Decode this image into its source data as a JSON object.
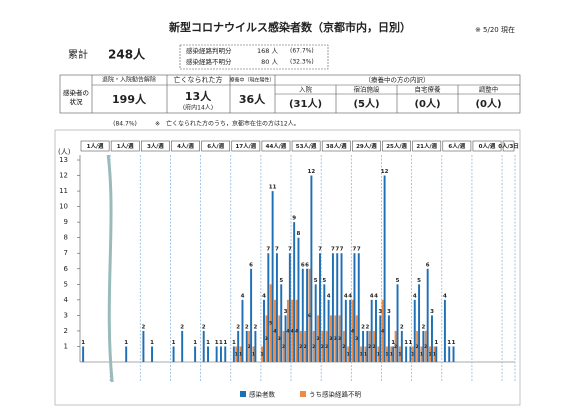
{
  "header": {
    "title": "新型コロナウイルス感染者数（京都市内，日別）",
    "date": "※ 5/20 現在"
  },
  "total": {
    "label": "累計",
    "value": "248人"
  },
  "route": {
    "rows": [
      [
        "感染経路判明分",
        "168 人",
        "(67.7%)"
      ],
      [
        "感染経路不明分",
        "80 人",
        "(32.3%)"
      ]
    ]
  },
  "status_table": {
    "row_header": "感染者の状況",
    "columns": [
      {
        "head": "退院・入院勧告解除",
        "value": "199人",
        "note": "(84.7%)"
      },
      {
        "head": "亡くなられた方",
        "value": "13人",
        "sub": "(府内14人)"
      },
      {
        "head": "療養中（現在陽性）",
        "value": "36人"
      }
    ],
    "group_head": "（療養中の方の内訳）",
    "group": [
      {
        "head": "入院",
        "value": "(31人)"
      },
      {
        "head": "宿泊施設",
        "value": "(5人)"
      },
      {
        "head": "自宅療養",
        "value": "(0人)"
      },
      {
        "head": "調整中",
        "value": "(0人)"
      }
    ],
    "footnote": "※　亡くなられた方のうち，京都市在住の方は12人。"
  },
  "chart_data": {
    "type": "bar",
    "y_label": "(人)",
    "weeks": [
      "1人/週",
      "1人/週",
      "3人/週",
      "4人/週",
      "6人/週",
      "17人/週",
      "44人/週",
      "53人/週",
      "38人/週",
      "29人/週",
      "25人/週",
      "21人/週",
      "6人/週",
      "0人/週",
      "0人/3日"
    ],
    "ylim": [
      0,
      13
    ],
    "yticks": [
      1,
      2,
      3,
      4,
      5,
      6,
      7,
      8,
      9,
      10,
      11,
      12,
      13
    ],
    "series": [
      {
        "name": "うち感染経路不明",
        "color": "#ed8b45",
        "values": [
          0,
          0,
          0,
          0,
          0,
          0,
          0,
          0,
          0,
          0,
          0,
          0,
          0,
          0,
          0,
          0,
          0,
          0,
          0,
          0,
          0,
          0,
          0,
          0,
          0,
          0,
          0,
          0,
          0,
          0,
          0,
          0,
          0,
          0,
          0,
          0,
          1,
          1,
          0,
          2,
          1,
          0,
          1,
          3,
          5,
          4,
          3,
          2,
          4,
          4,
          4,
          2,
          2,
          6,
          2,
          3,
          2,
          2,
          3,
          3,
          3,
          2,
          1,
          4,
          3,
          1,
          1,
          2,
          2,
          1,
          4,
          1,
          1,
          2,
          1,
          0,
          0,
          1,
          2,
          1,
          2,
          1,
          1,
          0,
          0,
          0,
          0,
          0,
          0,
          0,
          0,
          0,
          0,
          0,
          0,
          0,
          0,
          0,
          0,
          0,
          0
        ]
      },
      {
        "name": "感染者数",
        "color": "#1f6fb5",
        "values": [
          1,
          0,
          0,
          0,
          0,
          0,
          0,
          0,
          0,
          0,
          1,
          0,
          0,
          0,
          2,
          0,
          1,
          0,
          0,
          0,
          0,
          1,
          0,
          2,
          0,
          0,
          1,
          0,
          2,
          1,
          0,
          1,
          1,
          1,
          0,
          1,
          2,
          4,
          2,
          6,
          2,
          0,
          4,
          7,
          11,
          7,
          5,
          3,
          7,
          9,
          8,
          6,
          6,
          12,
          5,
          7,
          5,
          4,
          7,
          7,
          7,
          4,
          4,
          7,
          7,
          2,
          2,
          4,
          4,
          3,
          12,
          3,
          1,
          5,
          2,
          1,
          1,
          4,
          5,
          2,
          6,
          3,
          1,
          0,
          4,
          1,
          1,
          0,
          0,
          0,
          0,
          0,
          0,
          0,
          0,
          0,
          0,
          0,
          0,
          0,
          0
        ]
      }
    ]
  }
}
